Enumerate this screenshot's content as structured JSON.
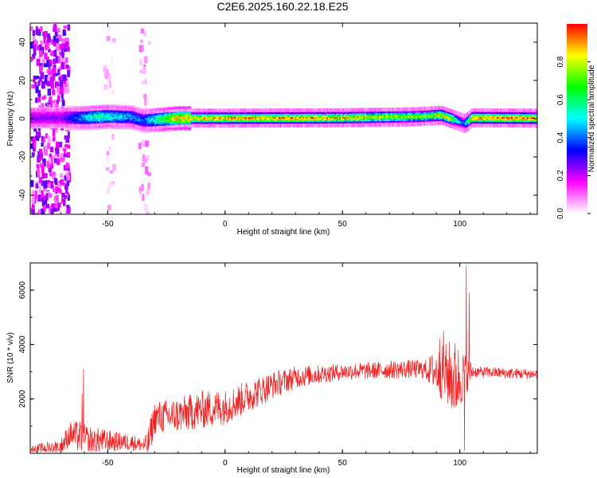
{
  "title": "C2E6.2025.160.22.18.E25",
  "chart_data": [
    {
      "type": "heatmap",
      "xlabel": "Height of straight line (km)",
      "ylabel": "Frequency (Hz)",
      "xlim": [
        -83,
        133
      ],
      "ylim": [
        -50,
        50
      ],
      "x_ticks": [
        -50,
        0,
        50,
        100
      ],
      "y_ticks": [
        -40,
        -20,
        0,
        20,
        40
      ],
      "colorbar": {
        "label": "Normalized spectral amplitude",
        "range": [
          0,
          1
        ],
        "ticks": [
          "0.0",
          "0.2",
          "0.4",
          "0.6",
          "0.8"
        ],
        "colors": [
          "#ffffff",
          "#ff00ff",
          "#0000ff",
          "#00ffff",
          "#00ff00",
          "#ffff00",
          "#ff0000"
        ]
      },
      "ridge_center": [
        [
          -70,
          0.5
        ],
        [
          -60,
          0.5
        ],
        [
          -50,
          1.2
        ],
        [
          -40,
          0.8
        ],
        [
          -35,
          -1.0
        ],
        [
          -20,
          0.3
        ],
        [
          0,
          0.3
        ],
        [
          50,
          0.5
        ],
        [
          80,
          1.0
        ],
        [
          92,
          1.8
        ],
        [
          95,
          0.5
        ],
        [
          102,
          -2.5
        ],
        [
          105,
          0.5
        ],
        [
          133,
          0.3
        ]
      ],
      "ridge_peak_amplitude": [
        [
          -70,
          0.25
        ],
        [
          -55,
          0.6
        ],
        [
          -35,
          0.4
        ],
        [
          -20,
          0.9
        ],
        [
          20,
          0.95
        ],
        [
          60,
          0.85
        ],
        [
          85,
          0.75
        ],
        [
          95,
          0.9
        ],
        [
          101,
          0.4
        ],
        [
          105,
          0.95
        ],
        [
          133,
          0.95
        ]
      ],
      "scatter_bands": [
        {
          "xmin": -83,
          "xmax": -67,
          "amplitude": 0.2
        },
        {
          "xmin": -37,
          "xmax": -33,
          "amplitude": 0.08
        },
        {
          "xmin": -52,
          "xmax": -48,
          "amplitude": 0.05
        }
      ]
    },
    {
      "type": "line",
      "xlabel": "Height of straight line (km)",
      "ylabel": "SNR (10 * v/v)",
      "xlim": [
        -83,
        133
      ],
      "ylim": [
        0,
        7000
      ],
      "x_ticks": [
        -50,
        0,
        50,
        100
      ],
      "y_ticks": [
        2000,
        4000,
        6000
      ],
      "color": "#ee2222",
      "baseline": [
        [
          -83,
          150
        ],
        [
          -70,
          250
        ],
        [
          -66,
          700
        ],
        [
          -62,
          600
        ],
        [
          -60,
          500
        ],
        [
          -50,
          450
        ],
        [
          -40,
          400
        ],
        [
          -35,
          300
        ],
        [
          -33,
          300
        ],
        [
          -30,
          1300
        ],
        [
          -20,
          1400
        ],
        [
          -10,
          1600
        ],
        [
          0,
          1700
        ],
        [
          10,
          2100
        ],
        [
          20,
          2500
        ],
        [
          30,
          2800
        ],
        [
          50,
          3000
        ],
        [
          80,
          3100
        ],
        [
          88,
          3050
        ],
        [
          95,
          2900
        ],
        [
          98,
          2700
        ],
        [
          105,
          3000
        ],
        [
          133,
          2900
        ]
      ],
      "noise_amplitude": [
        [
          -83,
          120
        ],
        [
          -70,
          300
        ],
        [
          -62,
          600
        ],
        [
          -50,
          400
        ],
        [
          -35,
          250
        ],
        [
          -32,
          600
        ],
        [
          -10,
          700
        ],
        [
          10,
          600
        ],
        [
          30,
          400
        ],
        [
          50,
          300
        ],
        [
          85,
          350
        ],
        [
          90,
          800
        ],
        [
          98,
          1500
        ],
        [
          106,
          200
        ],
        [
          133,
          200
        ]
      ],
      "spikes": [
        {
          "x": -60.3,
          "y": 3100
        },
        {
          "x": -61.0,
          "y": 2200
        },
        {
          "x": 93.0,
          "y": 4500
        },
        {
          "x": 91.5,
          "y": 4200
        },
        {
          "x": 102.8,
          "y": 6900
        },
        {
          "x": 102.0,
          "y": 100
        },
        {
          "x": 104.0,
          "y": 5900
        }
      ]
    }
  ]
}
